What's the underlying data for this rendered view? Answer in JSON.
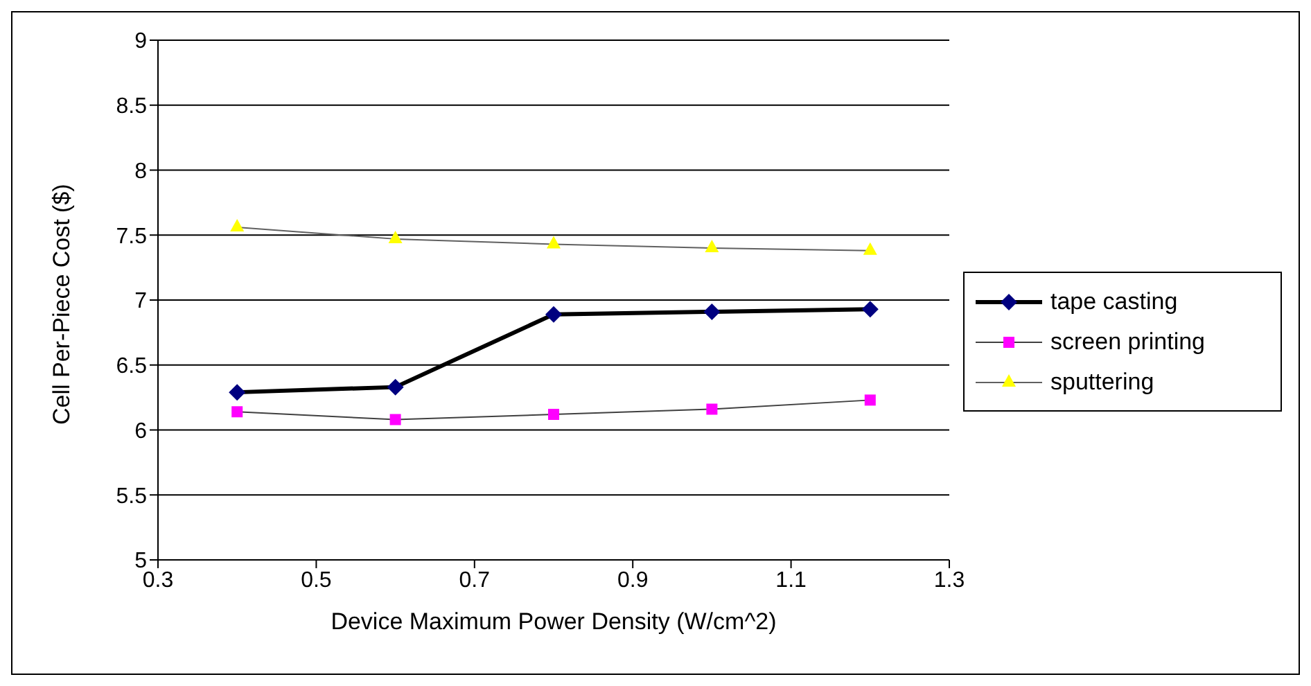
{
  "chart_data": {
    "type": "line",
    "xlabel": "Device Maximum Power Density (W/cm^2)",
    "ylabel": "Cell Per-Piece Cost ($)",
    "x": [
      0.4,
      0.6,
      0.8,
      1.0,
      1.2
    ],
    "series": [
      {
        "name": "tape casting",
        "color": "#000080",
        "marker": "diamond",
        "values": [
          6.29,
          6.33,
          6.89,
          6.91,
          6.93
        ]
      },
      {
        "name": "screen printing",
        "color": "#ff00ff",
        "marker": "square",
        "values": [
          6.14,
          6.08,
          6.12,
          6.16,
          6.23
        ]
      },
      {
        "name": "sputtering",
        "color": "#ffff00",
        "marker": "triangle",
        "values": [
          7.56,
          7.47,
          7.43,
          7.4,
          7.38
        ]
      }
    ],
    "xlim": [
      0.3,
      1.3
    ],
    "xticks": [
      0.3,
      0.5,
      0.7,
      0.9,
      1.1,
      1.3
    ],
    "ylim": [
      5,
      9
    ],
    "yticks": [
      5,
      5.5,
      6,
      6.5,
      7,
      7.5,
      8,
      8.5,
      9
    ],
    "grid": "y",
    "legend": "right"
  }
}
